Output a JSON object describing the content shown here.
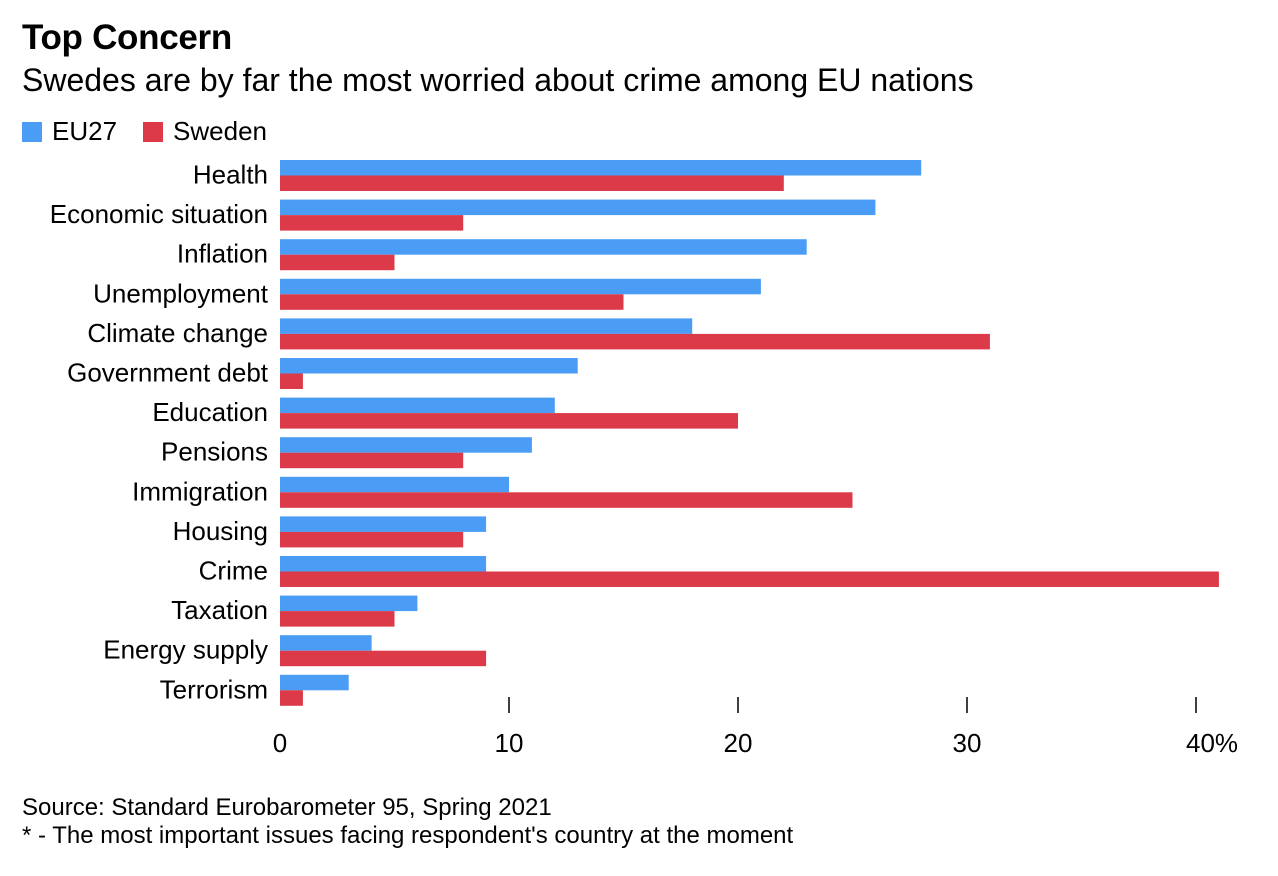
{
  "chart_data": {
    "type": "bar",
    "orientation": "horizontal",
    "title": "Top Concern",
    "subtitle": "Swedes are by far the most worried about crime among EU nations",
    "categories": [
      "Health",
      "Economic situation",
      "Inflation",
      "Unemployment",
      "Climate change",
      "Government debt",
      "Education",
      "Pensions",
      "Immigration",
      "Housing",
      "Crime",
      "Taxation",
      "Energy supply",
      "Terrorism"
    ],
    "series": [
      {
        "name": "EU27",
        "color": "#4a9cf4",
        "values": [
          28,
          26,
          23,
          21,
          18,
          13,
          12,
          11,
          10,
          9,
          9,
          6,
          4,
          3
        ]
      },
      {
        "name": "Sweden",
        "color": "#dc3a48",
        "values": [
          22,
          8,
          5,
          15,
          31,
          1,
          20,
          8,
          25,
          8,
          41,
          5,
          9,
          1
        ]
      }
    ],
    "xlim": [
      0,
      41
    ],
    "xticks": [
      0,
      10,
      20,
      30,
      40
    ],
    "xtick_labels": [
      "0",
      "10",
      "20",
      "30",
      "40%"
    ],
    "legend_position": "top-left",
    "xlabel": "",
    "ylabel": ""
  },
  "footer": {
    "source": "Source: Standard Eurobarometer 95, Spring 2021",
    "note": "* - The most important issues facing respondent's country at the moment"
  }
}
